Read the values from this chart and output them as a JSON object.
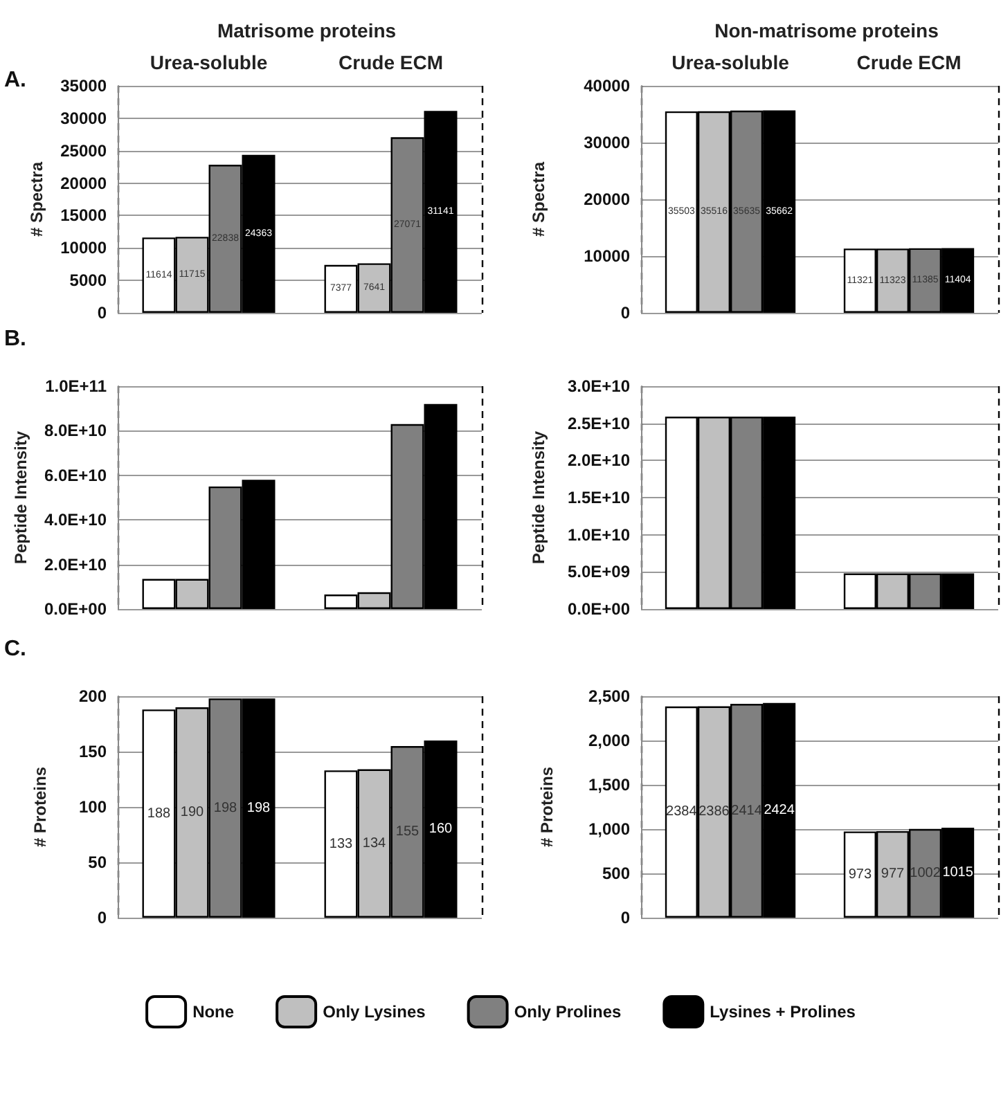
{
  "chart_data": [
    {
      "type": "bar",
      "title": "Matrisome proteins",
      "ylabel": "# Spectra",
      "annotations": [
        "A."
      ],
      "categories": [
        "Urea-soluble",
        "Crude ECM"
      ],
      "ylim": [
        0,
        35000
      ],
      "yticks": [
        0,
        5000,
        10000,
        15000,
        20000,
        25000,
        30000,
        35000
      ],
      "grid": "y",
      "data_labels": true,
      "series": [
        {
          "color": "#ffffff",
          "values": [
            11614,
            7377
          ]
        },
        {
          "color": "#bfbfbf",
          "values": [
            11715,
            7641
          ]
        },
        {
          "color": "#808080",
          "values": [
            22838,
            27071
          ]
        },
        {
          "color": "#000000",
          "values": [
            24363,
            31141
          ]
        }
      ]
    },
    {
      "type": "bar",
      "title": "Non-matrisome proteins",
      "ylabel": "# Spectra",
      "categories": [
        "Urea-soluble",
        "Crude ECM"
      ],
      "ylim": [
        0,
        40000
      ],
      "yticks": [
        0,
        10000,
        20000,
        30000,
        40000
      ],
      "grid": "y",
      "data_labels": true,
      "series": [
        {
          "color": "#ffffff",
          "values": [
            35503,
            11321
          ]
        },
        {
          "color": "#bfbfbf",
          "values": [
            35516,
            11323
          ]
        },
        {
          "color": "#808080",
          "values": [
            35635,
            11385
          ]
        },
        {
          "color": "#000000",
          "values": [
            35662,
            11404
          ]
        }
      ]
    },
    {
      "type": "bar",
      "ylabel": "Peptide Intensity",
      "annotations": [
        "B."
      ],
      "categories": [
        null,
        null
      ],
      "tick_labels": "y",
      "ylim": [
        0,
        100000000000
      ],
      "yticks": [
        {
          "value": 0,
          "label": "0.0E+00"
        },
        {
          "value": 20000000000,
          "label": "2.0E+10"
        },
        {
          "value": 40000000000,
          "label": "4.0E+10"
        },
        {
          "value": 60000000000,
          "label": "6.0E+10"
        },
        {
          "value": 80000000000,
          "label": "8.0E+10"
        },
        {
          "value": 100000000000,
          "label": "1.0E+11"
        }
      ],
      "grid": "y",
      "series": [
        {
          "color": "#ffffff",
          "values": [
            13500000000,
            6500000000
          ]
        },
        {
          "color": "#bfbfbf",
          "values": [
            13500000000,
            7500000000
          ]
        },
        {
          "color": "#808080",
          "values": [
            55000000000,
            83000000000
          ]
        },
        {
          "color": "#000000",
          "values": [
            58000000000,
            92000000000
          ]
        }
      ]
    },
    {
      "type": "bar",
      "ylabel": "Peptide Intensity",
      "categories": [
        null,
        null
      ],
      "tick_labels": "y",
      "ylim": [
        0,
        30000000000
      ],
      "yticks": [
        {
          "value": 0,
          "label": "0.0E+00"
        },
        {
          "value": 5000000000,
          "label": "5.0E+09"
        },
        {
          "value": 10000000000,
          "label": "1.0E+10"
        },
        {
          "value": 15000000000,
          "label": "1.5E+10"
        },
        {
          "value": 20000000000,
          "label": "2.0E+10"
        },
        {
          "value": 25000000000,
          "label": "2.5E+10"
        },
        {
          "value": 30000000000,
          "label": "3.0E+10"
        }
      ],
      "grid": "y",
      "series": [
        {
          "color": "#ffffff",
          "values": [
            25900000000,
            4800000000
          ]
        },
        {
          "color": "#bfbfbf",
          "values": [
            25900000000,
            4800000000
          ]
        },
        {
          "color": "#808080",
          "values": [
            25900000000,
            4800000000
          ]
        },
        {
          "color": "#000000",
          "values": [
            25900000000,
            4800000000
          ]
        }
      ]
    },
    {
      "type": "bar",
      "ylabel": "# Proteins",
      "annotations": [
        "C."
      ],
      "categories": [
        null,
        null
      ],
      "tick_labels": "y",
      "ylim": [
        0,
        200
      ],
      "yticks": [
        0,
        50,
        100,
        150,
        200
      ],
      "grid": "y",
      "data_labels": true,
      "legend": "bottom",
      "series": [
        {
          "name": "None",
          "color": "#ffffff",
          "values": [
            188,
            133
          ]
        },
        {
          "name": "Only Lysines",
          "color": "#bfbfbf",
          "values": [
            190,
            134
          ]
        },
        {
          "name": "Only Prolines",
          "color": "#808080",
          "values": [
            198,
            155
          ]
        },
        {
          "name": "Lysines + Prolines",
          "color": "#000000",
          "values": [
            198,
            160
          ]
        }
      ]
    },
    {
      "type": "bar",
      "ylabel": "# Proteins",
      "categories": [
        null,
        null
      ],
      "tick_labels": "y",
      "ylim": [
        0,
        2500
      ],
      "yticks": [
        0,
        500,
        {
          "value": 1000,
          "label": "1,000"
        },
        {
          "value": 1500,
          "label": "1,500"
        },
        {
          "value": 2000,
          "label": "2,000"
        },
        {
          "value": 2500,
          "label": "2,500"
        }
      ],
      "grid": "y",
      "data_labels": true,
      "series": [
        {
          "color": "#ffffff",
          "values": [
            2384,
            973
          ]
        },
        {
          "color": "#bfbfbf",
          "values": [
            2386,
            977
          ]
        },
        {
          "color": "#808080",
          "values": [
            2414,
            1002
          ]
        },
        {
          "color": "#000000",
          "values": [
            2424,
            1015
          ]
        }
      ]
    }
  ]
}
